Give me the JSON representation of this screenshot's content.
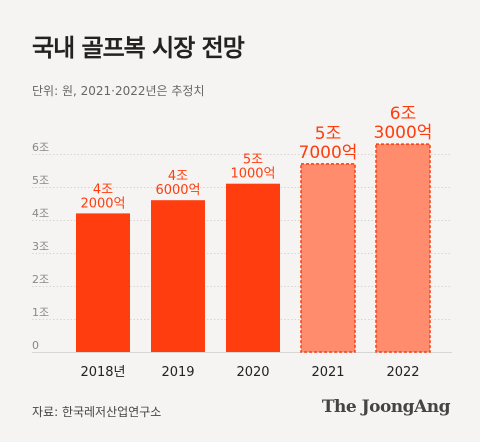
{
  "title": "국내 골프복 시장 전망",
  "unit_note": "단위: 원, 2021·2022년은 추정치",
  "source": "자료: 한국레저산업연구소",
  "logo": "The JoongAng",
  "colors": {
    "actual": "#ff3d0f",
    "estimate": "#ff8c6c",
    "estimate_border": "#ff3d0f",
    "label": "#ff3d0f",
    "axis_text": "#777777"
  },
  "chart_data": {
    "type": "bar",
    "title": "국내 골프복 시장 전망",
    "xlabel": "",
    "ylabel": "",
    "categories": [
      "2018년",
      "2019",
      "2020",
      "2021",
      "2022"
    ],
    "values": [
      4.2,
      4.6,
      5.1,
      5.7,
      6.3
    ],
    "data_labels": [
      [
        "4조",
        "2000억"
      ],
      [
        "4조",
        "6000억"
      ],
      [
        "5조",
        "1000억"
      ],
      [
        "5조",
        "7000억"
      ],
      [
        "6조",
        "3000억"
      ]
    ],
    "estimated": [
      false,
      false,
      false,
      true,
      true
    ],
    "y_ticks": [
      "0",
      "1조",
      "2조",
      "3조",
      "4조",
      "5조",
      "6조"
    ],
    "ylim": [
      0,
      6.3
    ],
    "grid": true
  }
}
